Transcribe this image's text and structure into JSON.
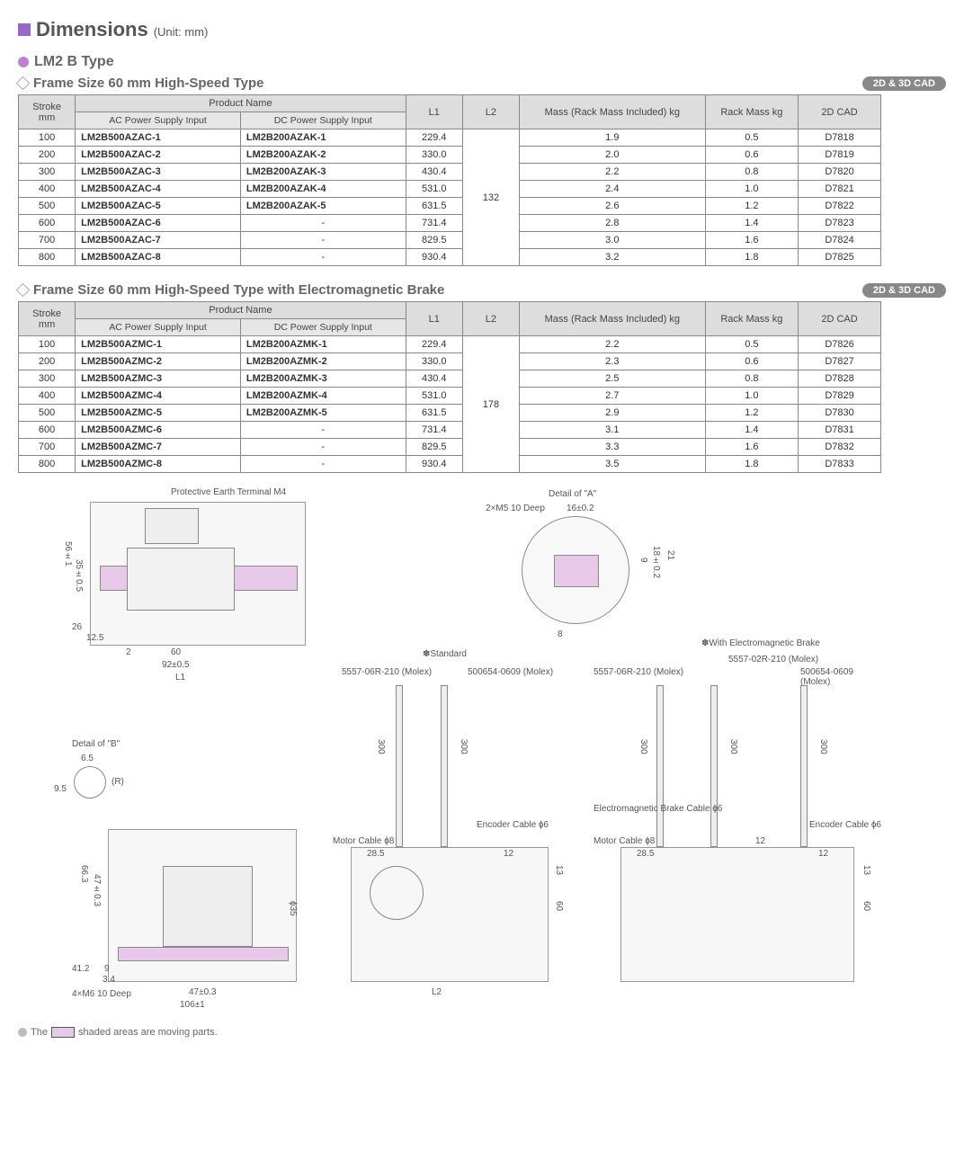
{
  "header": {
    "title": "Dimensions",
    "unit": "(Unit: mm)",
    "subtitle": "LM2 B Type"
  },
  "section1": {
    "title": "Frame Size 60 mm High-Speed Type",
    "badge": "2D & 3D CAD",
    "columns": {
      "stroke": "Stroke mm",
      "pn": "Product Name",
      "ac": "AC Power Supply Input",
      "dc": "DC Power Supply Input",
      "l1": "L1",
      "l2": "L2",
      "mass": "Mass (Rack Mass Included) kg",
      "rack": "Rack Mass kg",
      "cad": "2D CAD"
    },
    "l2": "132",
    "rows": [
      {
        "stroke": "100",
        "ac": "LM2B500AZAC-1",
        "dc": "LM2B200AZAK-1",
        "l1": "229.4",
        "mass": "1.9",
        "rack": "0.5",
        "cad": "D7818"
      },
      {
        "stroke": "200",
        "ac": "LM2B500AZAC-2",
        "dc": "LM2B200AZAK-2",
        "l1": "330.0",
        "mass": "2.0",
        "rack": "0.6",
        "cad": "D7819"
      },
      {
        "stroke": "300",
        "ac": "LM2B500AZAC-3",
        "dc": "LM2B200AZAK-3",
        "l1": "430.4",
        "mass": "2.2",
        "rack": "0.8",
        "cad": "D7820"
      },
      {
        "stroke": "400",
        "ac": "LM2B500AZAC-4",
        "dc": "LM2B200AZAK-4",
        "l1": "531.0",
        "mass": "2.4",
        "rack": "1.0",
        "cad": "D7821"
      },
      {
        "stroke": "500",
        "ac": "LM2B500AZAC-5",
        "dc": "LM2B200AZAK-5",
        "l1": "631.5",
        "mass": "2.6",
        "rack": "1.2",
        "cad": "D7822"
      },
      {
        "stroke": "600",
        "ac": "LM2B500AZAC-6",
        "dc": "-",
        "l1": "731.4",
        "mass": "2.8",
        "rack": "1.4",
        "cad": "D7823"
      },
      {
        "stroke": "700",
        "ac": "LM2B500AZAC-7",
        "dc": "-",
        "l1": "829.5",
        "mass": "3.0",
        "rack": "1.6",
        "cad": "D7824"
      },
      {
        "stroke": "800",
        "ac": "LM2B500AZAC-8",
        "dc": "-",
        "l1": "930.4",
        "mass": "3.2",
        "rack": "1.8",
        "cad": "D7825"
      }
    ]
  },
  "section2": {
    "title": "Frame Size 60 mm High-Speed Type with Electromagnetic Brake",
    "badge": "2D & 3D CAD",
    "l2": "178",
    "rows": [
      {
        "stroke": "100",
        "ac": "LM2B500AZMC-1",
        "dc": "LM2B200AZMK-1",
        "l1": "229.4",
        "mass": "2.2",
        "rack": "0.5",
        "cad": "D7826"
      },
      {
        "stroke": "200",
        "ac": "LM2B500AZMC-2",
        "dc": "LM2B200AZMK-2",
        "l1": "330.0",
        "mass": "2.3",
        "rack": "0.6",
        "cad": "D7827"
      },
      {
        "stroke": "300",
        "ac": "LM2B500AZMC-3",
        "dc": "LM2B200AZMK-3",
        "l1": "430.4",
        "mass": "2.5",
        "rack": "0.8",
        "cad": "D7828"
      },
      {
        "stroke": "400",
        "ac": "LM2B500AZMC-4",
        "dc": "LM2B200AZMK-4",
        "l1": "531.0",
        "mass": "2.7",
        "rack": "1.0",
        "cad": "D7829"
      },
      {
        "stroke": "500",
        "ac": "LM2B500AZMC-5",
        "dc": "LM2B200AZMK-5",
        "l1": "631.5",
        "mass": "2.9",
        "rack": "1.2",
        "cad": "D7830"
      },
      {
        "stroke": "600",
        "ac": "LM2B500AZMC-6",
        "dc": "-",
        "l1": "731.4",
        "mass": "3.1",
        "rack": "1.4",
        "cad": "D7831"
      },
      {
        "stroke": "700",
        "ac": "LM2B500AZMC-7",
        "dc": "-",
        "l1": "829.5",
        "mass": "3.3",
        "rack": "1.6",
        "cad": "D7832"
      },
      {
        "stroke": "800",
        "ac": "LM2B500AZMC-8",
        "dc": "-",
        "l1": "930.4",
        "mass": "3.5",
        "rack": "1.8",
        "cad": "D7833"
      }
    ]
  },
  "diagram": {
    "labels": {
      "pet": "Protective Earth Terminal M4",
      "detailA": "Detail of \"A\"",
      "detailB": "Detail of \"B\"",
      "m5": "2×M5 10 Deep",
      "m6": "4×M6 10 Deep",
      "standard": "✽Standard",
      "brake": "✽With Electromagnetic Brake",
      "molex1": "5557-06R-210 (Molex)",
      "molex2": "500654-0609 (Molex)",
      "molex3": "5557-02R-210 (Molex)",
      "motorCable": "Motor Cable ɸ8",
      "encoderCable": "Encoder Cable ɸ6",
      "emCable": "Electromagnetic Brake Cable ɸ6",
      "d56": "56±1",
      "d35": "35±0.5",
      "d26": "26",
      "d125": "12.5",
      "d2": "2",
      "d60": "60",
      "d92": "92±0.5",
      "L1": "L1",
      "d65": "6.5",
      "d95": "9.5",
      "dR": "(R)",
      "d16": "16±0.2",
      "d18": "18±0.2",
      "d9": "9",
      "d21": "21",
      "d8": "8",
      "d300": "300",
      "d285": "28.5",
      "d12": "12",
      "d13": "13",
      "L2": "L2",
      "d663": "66.3",
      "d47": "47±0.3",
      "d412": "41.2",
      "d9b": "9",
      "d34": "3.4",
      "d106": "106±1",
      "d35b": "ɸ35"
    }
  },
  "footer": "shaded areas are moving parts."
}
